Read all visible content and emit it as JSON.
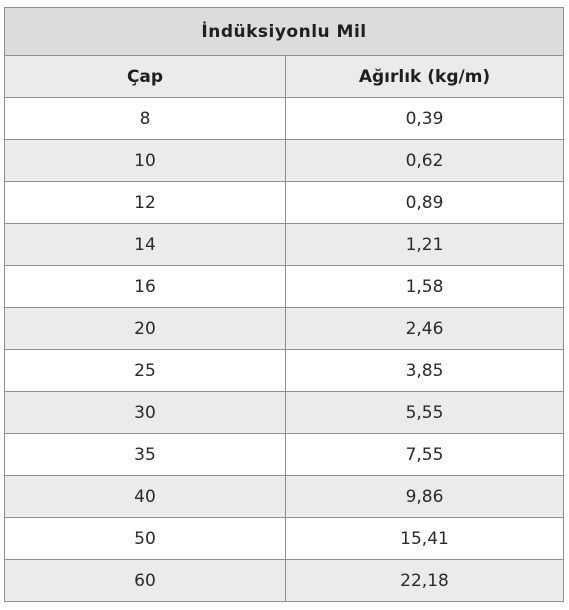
{
  "table": {
    "title": "İndüksiyonlu Mil",
    "headers": [
      "Çap",
      "Ağırlık (kg/m)"
    ],
    "rows": [
      [
        "8",
        "0,39"
      ],
      [
        "10",
        "0,62"
      ],
      [
        "12",
        "0,89"
      ],
      [
        "14",
        "1,21"
      ],
      [
        "16",
        "1,58"
      ],
      [
        "20",
        "2,46"
      ],
      [
        "25",
        "3,85"
      ],
      [
        "30",
        "5,55"
      ],
      [
        "35",
        "7,55"
      ],
      [
        "40",
        "9,86"
      ],
      [
        "50",
        "15,41"
      ],
      [
        "60",
        "22,18"
      ]
    ]
  },
  "colors": {
    "title_bg": "#dcdcdc",
    "stripe_bg": "#ebebeb",
    "plain_bg": "#ffffff",
    "border": "#8f8f8f"
  }
}
